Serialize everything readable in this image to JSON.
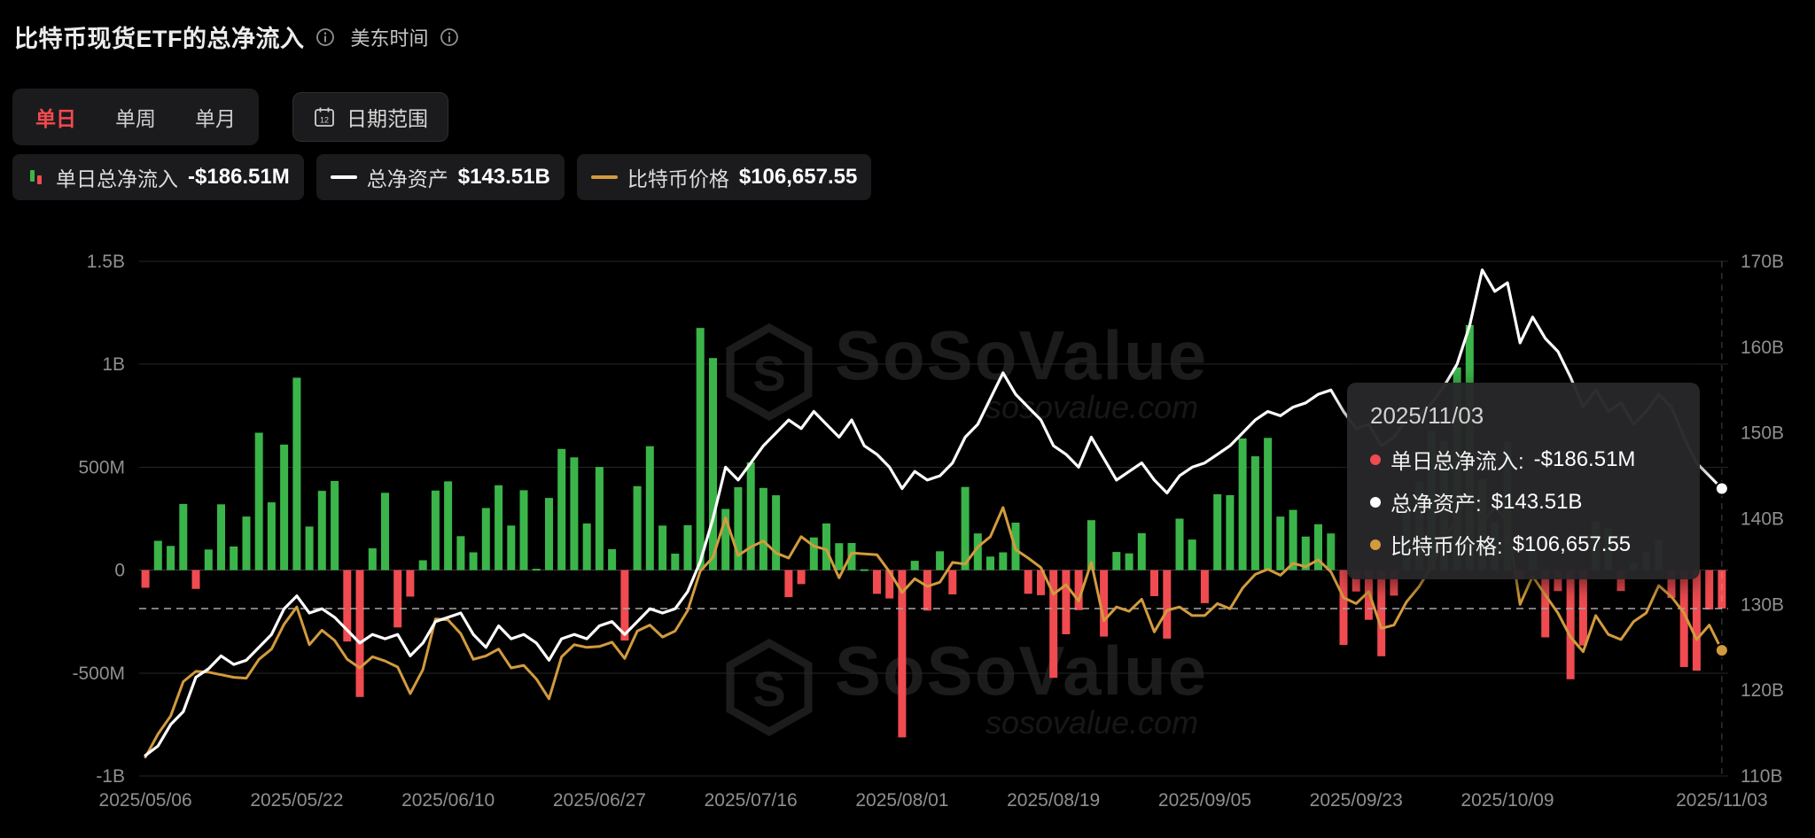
{
  "header": {
    "title": "比特币现货ETF的总净流入",
    "timezone_label": "美东时间"
  },
  "controls": {
    "tabs": [
      {
        "label": "单日",
        "active": true
      },
      {
        "label": "单周",
        "active": false
      },
      {
        "label": "单月",
        "active": false
      }
    ],
    "date_range_label": "日期范围",
    "active_tab_color": "#f34a50"
  },
  "legend": [
    {
      "label": "单日总净流入",
      "value": "-$186.51M",
      "type": "bar"
    },
    {
      "label": "总净资产",
      "value": "$143.51B",
      "type": "line",
      "color": "#ffffff"
    },
    {
      "label": "比特币价格",
      "value": "$106,657.55",
      "type": "line",
      "color": "#d29b3e"
    }
  ],
  "tooltip": {
    "date": "2025/11/03",
    "rows": [
      {
        "label": "单日总净流入:",
        "value": "-$186.51M",
        "color": "#ef4b50"
      },
      {
        "label": "总净资产:",
        "value": "$143.51B",
        "color": "#ffffff"
      },
      {
        "label": "比特币价格:",
        "value": "$106,657.55",
        "color": "#d29b3e"
      }
    ]
  },
  "watermark": {
    "text": "SoSoValue",
    "subtext": "sosovalue.com"
  },
  "chart_data": {
    "type": "combo",
    "title": "比特币现货ETF的总净流入",
    "left_axis": {
      "range": [
        -1000,
        1500
      ],
      "unit": "$M",
      "ticks": [
        "1.5B",
        "1B",
        "500M",
        "0",
        "-500M",
        "-1B"
      ],
      "values": [
        1500,
        1000,
        500,
        0,
        -500,
        -1000
      ]
    },
    "right_axis": {
      "range": [
        110,
        170
      ],
      "unit": "$B",
      "ticks": [
        "170B",
        "160B",
        "150B",
        "140B",
        "130B",
        "120B",
        "110B"
      ],
      "values": [
        170,
        160,
        150,
        140,
        130,
        120,
        110
      ]
    },
    "price_axis": {
      "range": [
        92,
        152
      ],
      "unit": "$K",
      "visible": false
    },
    "x_ticks": [
      {
        "index": 0,
        "label": "2025/05/06"
      },
      {
        "index": 12,
        "label": "2025/05/22"
      },
      {
        "index": 24,
        "label": "2025/06/10"
      },
      {
        "index": 36,
        "label": "2025/06/27"
      },
      {
        "index": 48,
        "label": "2025/07/16"
      },
      {
        "index": 60,
        "label": "2025/08/01"
      },
      {
        "index": 72,
        "label": "2025/08/19"
      },
      {
        "index": 84,
        "label": "2025/09/05"
      },
      {
        "index": 96,
        "label": "2025/09/23"
      },
      {
        "index": 108,
        "label": "2025/10/09"
      },
      {
        "index": 125,
        "label": "2025/11/03"
      }
    ],
    "dates": [
      "2025/05/06",
      "2025/05/07",
      "2025/05/08",
      "2025/05/09",
      "2025/05/12",
      "2025/05/13",
      "2025/05/14",
      "2025/05/15",
      "2025/05/16",
      "2025/05/19",
      "2025/05/20",
      "2025/05/21",
      "2025/05/22",
      "2025/05/23",
      "2025/05/27",
      "2025/05/28",
      "2025/05/29",
      "2025/05/30",
      "2025/06/02",
      "2025/06/03",
      "2025/06/04",
      "2025/06/05",
      "2025/06/06",
      "2025/06/09",
      "2025/06/10",
      "2025/06/11",
      "2025/06/12",
      "2025/06/13",
      "2025/06/16",
      "2025/06/17",
      "2025/06/18",
      "2025/06/20",
      "2025/06/23",
      "2025/06/24",
      "2025/06/25",
      "2025/06/26",
      "2025/06/27",
      "2025/06/30",
      "2025/07/01",
      "2025/07/02",
      "2025/07/03",
      "2025/07/07",
      "2025/07/08",
      "2025/07/09",
      "2025/07/10",
      "2025/07/11",
      "2025/07/14",
      "2025/07/15",
      "2025/07/16",
      "2025/07/17",
      "2025/07/18",
      "2025/07/21",
      "2025/07/22",
      "2025/07/23",
      "2025/07/24",
      "2025/07/25",
      "2025/07/28",
      "2025/07/29",
      "2025/07/30",
      "2025/07/31",
      "2025/08/01",
      "2025/08/04",
      "2025/08/05",
      "2025/08/06",
      "2025/08/07",
      "2025/08/08",
      "2025/08/11",
      "2025/08/12",
      "2025/08/13",
      "2025/08/14",
      "2025/08/15",
      "2025/08/18",
      "2025/08/19",
      "2025/08/20",
      "2025/08/21",
      "2025/08/22",
      "2025/08/25",
      "2025/08/26",
      "2025/08/27",
      "2025/08/28",
      "2025/08/29",
      "2025/09/02",
      "2025/09/03",
      "2025/09/04",
      "2025/09/05",
      "2025/09/08",
      "2025/09/09",
      "2025/09/10",
      "2025/09/11",
      "2025/09/12",
      "2025/09/15",
      "2025/09/16",
      "2025/09/17",
      "2025/09/18",
      "2025/09/19",
      "2025/09/22",
      "2025/09/23",
      "2025/09/24",
      "2025/09/25",
      "2025/09/26",
      "2025/09/29",
      "2025/09/30",
      "2025/10/01",
      "2025/10/02",
      "2025/10/03",
      "2025/10/06",
      "2025/10/07",
      "2025/10/08",
      "2025/10/09",
      "2025/10/10",
      "2025/10/13",
      "2025/10/14",
      "2025/10/15",
      "2025/10/16",
      "2025/10/17",
      "2025/10/20",
      "2025/10/21",
      "2025/10/22",
      "2025/10/23",
      "2025/10/24",
      "2025/10/27",
      "2025/10/28",
      "2025/10/29",
      "2025/10/30",
      "2025/10/31",
      "2025/11/03"
    ],
    "series": [
      {
        "name": "单日总净流入",
        "type": "bar",
        "unit": "$M",
        "axis": "left",
        "color_positive": "#3bb54a",
        "color_negative": "#ef4b50",
        "values": [
          -85.6,
          142.3,
          117.4,
          321.4,
          -91.4,
          100.2,
          319.5,
          114.9,
          260.3,
          667.4,
          329.2,
          609.9,
          934.8,
          211.7,
          385.3,
          432.7,
          -346.8,
          -616.1,
          105.9,
          375.6,
          -278.4,
          -128.8,
          47.8,
          386.3,
          431.2,
          164.6,
          86.3,
          301.7,
          412.2,
          216.3,
          388.3,
          6.4,
          350.9,
          588.6,
          547.7,
          226.7,
          501.2,
          102.1,
          -342.2,
          407.8,
          601.8,
          216.6,
          80.1,
          218.0,
          1176.5,
          1030.0,
          297.4,
          402.9,
          523.7,
          399.5,
          363.5,
          -131.4,
          -67.9,
          158.7,
          226.7,
          130.7,
          131.8,
          4.4,
          -115.4,
          -137.7,
          -812.3,
          45.1,
          -196.5,
          91.6,
          -117.9,
          403.9,
          178.1,
          65.9,
          86.6,
          230.8,
          -114.8,
          -121.7,
          -523.3,
          -311.6,
          -194.4,
          242.6,
          -322.7,
          88.2,
          81.4,
          179.4,
          -126.6,
          -332.7,
          250.2,
          148.3,
          -160.3,
          368.3,
          364.1,
          639.5,
          552.8,
          642.4,
          260.1,
          292.4,
          163.0,
          222.9,
          178.3,
          -363.5,
          -103.8,
          -241.3,
          -418.3,
          -123.8,
          299.8,
          429.6,
          675.8,
          627.2,
          985.1,
          1190.5,
          440.3,
          231.0,
          622.1,
          -45.0,
          102.6,
          -326.5,
          -101.9,
          -530.1,
          -366.3,
          238.4,
          202.3,
          -101.4,
          34.0,
          90.6,
          149.3,
          -135.5,
          -470.7,
          -488.4,
          -191.6,
          -186.51
        ]
      },
      {
        "name": "总净资产",
        "type": "line",
        "unit": "$B",
        "axis": "right",
        "color": "#ffffff",
        "values": [
          112.4,
          113.5,
          116.0,
          117.5,
          121.5,
          122.5,
          124.0,
          123.0,
          123.5,
          125.0,
          126.5,
          129.5,
          131.0,
          129.0,
          129.5,
          128.5,
          127.0,
          125.5,
          126.5,
          126.0,
          126.5,
          124.0,
          125.5,
          128.0,
          128.5,
          129.0,
          126.5,
          125.0,
          127.5,
          126.0,
          126.5,
          125.5,
          123.5,
          126.0,
          126.5,
          126.0,
          127.5,
          128.0,
          126.5,
          128.0,
          129.5,
          129.0,
          129.5,
          131.5,
          135.0,
          140.0,
          146.0,
          144.5,
          146.5,
          148.5,
          150.0,
          151.5,
          150.5,
          152.5,
          151.0,
          149.5,
          151.5,
          148.5,
          147.5,
          146.0,
          143.5,
          145.5,
          144.5,
          145.0,
          146.5,
          149.5,
          151.0,
          154.0,
          157.0,
          154.5,
          153.0,
          151.5,
          148.5,
          147.5,
          146.0,
          149.5,
          147.0,
          144.5,
          145.5,
          146.5,
          144.5,
          143.0,
          145.0,
          146.0,
          146.5,
          147.5,
          148.5,
          150.0,
          151.5,
          152.5,
          152.0,
          153.0,
          153.5,
          154.5,
          155.0,
          152.5,
          150.5,
          151.0,
          148.5,
          149.5,
          151.5,
          152.0,
          153.5,
          155.5,
          158.0,
          162.5,
          169.0,
          166.5,
          167.5,
          160.5,
          163.5,
          161.0,
          159.5,
          156.5,
          153.0,
          155.0,
          152.5,
          153.5,
          151.0,
          152.5,
          154.5,
          153.0,
          149.5,
          146.5,
          145.0,
          143.51
        ]
      },
      {
        "name": "比特币价格",
        "type": "line",
        "unit": "$K",
        "axis": "price",
        "color": "#d29b3e",
        "values": [
          94.2,
          96.9,
          99.0,
          103.0,
          104.2,
          104.1,
          103.8,
          103.5,
          103.4,
          105.6,
          106.8,
          109.7,
          111.7,
          107.3,
          109.0,
          107.8,
          105.6,
          104.6,
          105.9,
          105.4,
          104.7,
          101.6,
          104.4,
          110.3,
          110.2,
          108.6,
          105.6,
          106.0,
          106.8,
          104.6,
          104.9,
          103.3,
          101.0,
          105.9,
          107.3,
          107.0,
          107.1,
          107.6,
          105.7,
          108.9,
          109.6,
          108.2,
          108.9,
          111.3,
          115.9,
          117.5,
          122.1,
          117.7,
          118.7,
          119.4,
          118.0,
          117.4,
          119.9,
          118.8,
          118.4,
          115.1,
          118.0,
          117.9,
          117.8,
          115.8,
          113.4,
          115.0,
          114.1,
          114.6,
          116.9,
          116.7,
          118.7,
          119.9,
          123.3,
          118.4,
          117.4,
          116.3,
          113.2,
          114.3,
          112.4,
          116.9,
          110.1,
          111.7,
          111.2,
          112.6,
          108.8,
          111.3,
          111.7,
          110.7,
          110.7,
          112.1,
          111.5,
          113.9,
          115.5,
          116.1,
          115.4,
          116.8,
          116.4,
          117.2,
          115.8,
          112.8,
          112.1,
          113.5,
          109.2,
          109.6,
          112.3,
          114.1,
          116.5,
          119.5,
          122.2,
          125.3,
          121.5,
          123.3,
          121.7,
          112.0,
          115.3,
          113.1,
          111.0,
          108.2,
          106.5,
          110.7,
          108.5,
          107.9,
          110.0,
          111.0,
          114.2,
          112.9,
          111.0,
          107.9,
          109.6,
          106.657
        ]
      }
    ],
    "crosshair": {
      "index": 125,
      "value": -186.51,
      "date": "2025/11/03"
    },
    "grid": true,
    "legend_position": "top"
  }
}
